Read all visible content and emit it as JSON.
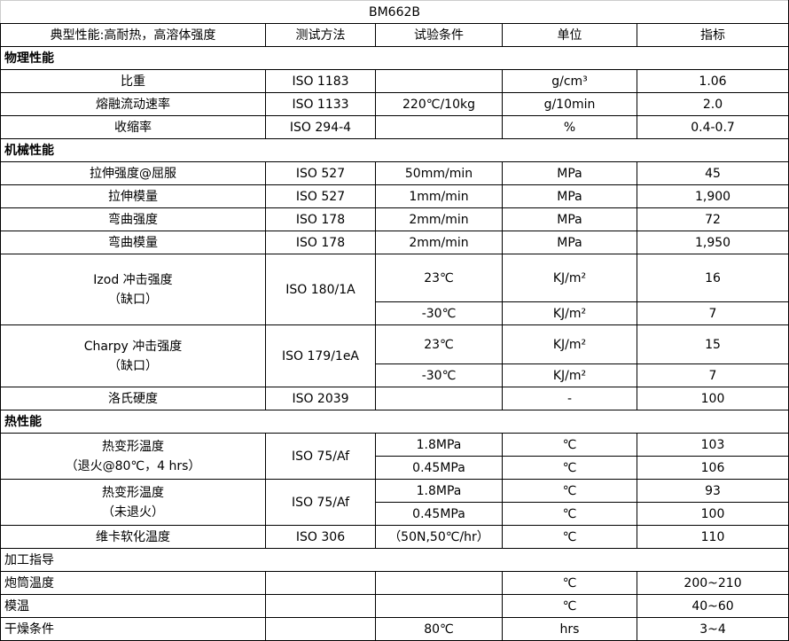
{
  "title": "BM662B",
  "headers": [
    "典型性能:高耐热，高溶体强度",
    "测试方法",
    "试验条件",
    "单位",
    "指标"
  ],
  "sections": [
    {
      "label": "物理性能",
      "bold": true,
      "rows": [
        {
          "name": [
            "比重"
          ],
          "method": "ISO 1183",
          "subs": [
            {
              "cond": "",
              "unit": "g/cm³",
              "value": "1.06"
            }
          ]
        },
        {
          "name": [
            "熔融流动速率"
          ],
          "method": "ISO 1133",
          "subs": [
            {
              "cond": "220℃/10kg",
              "unit": "g/10min",
              "value": "2.0"
            }
          ]
        },
        {
          "name": [
            "收缩率"
          ],
          "method": "ISO 294-4",
          "subs": [
            {
              "cond": "",
              "unit": "%",
              "value": "0.4-0.7"
            }
          ]
        }
      ]
    },
    {
      "label": "机械性能",
      "bold": true,
      "rows": [
        {
          "name": [
            "拉伸强度@屈服"
          ],
          "method": "ISO 527",
          "subs": [
            {
              "cond": "50mm/min",
              "unit": "MPa",
              "value": "45"
            }
          ]
        },
        {
          "name": [
            "拉伸模量"
          ],
          "method": "ISO 527",
          "subs": [
            {
              "cond": "1mm/min",
              "unit": "MPa",
              "value": "1,900"
            }
          ]
        },
        {
          "name": [
            "弯曲强度"
          ],
          "method": "ISO 178",
          "subs": [
            {
              "cond": "2mm/min",
              "unit": "MPa",
              "value": "72"
            }
          ]
        },
        {
          "name": [
            "弯曲模量"
          ],
          "method": "ISO 178",
          "subs": [
            {
              "cond": "2mm/min",
              "unit": "MPa",
              "value": "1,950"
            }
          ]
        },
        {
          "name": [
            "Izod 冲击强度",
            "（缺口）"
          ],
          "method": "ISO 180/1A",
          "subs": [
            {
              "cond": "23℃",
              "unit": "KJ/m²",
              "value": "16"
            },
            {
              "cond": "-30℃",
              "unit": "KJ/m²",
              "value": "7"
            }
          ]
        },
        {
          "name": [
            "Charpy 冲击强度",
            "（缺口）"
          ],
          "method": "ISO 179/1eA",
          "subs": [
            {
              "cond": "23℃",
              "unit": "KJ/m²",
              "value": "15"
            },
            {
              "cond": "-30℃",
              "unit": "KJ/m²",
              "value": "7"
            }
          ]
        },
        {
          "name": [
            "洛氏硬度"
          ],
          "method": "ISO 2039",
          "subs": [
            {
              "cond": "",
              "unit": "-",
              "value": "100"
            }
          ]
        }
      ]
    },
    {
      "label": "热性能",
      "bold": true,
      "rows": [
        {
          "name": [
            "热变形温度",
            "（退火@80℃，4 hrs）"
          ],
          "method": "ISO 75/Af",
          "subs": [
            {
              "cond": "1.8MPa",
              "unit": "℃",
              "value": "103"
            },
            {
              "cond": "0.45MPa",
              "unit": "℃",
              "value": "106"
            }
          ]
        },
        {
          "name": [
            "热变形温度",
            "（未退火）"
          ],
          "method": "ISO 75/Af",
          "subs": [
            {
              "cond": "1.8MPa",
              "unit": "℃",
              "value": "93"
            },
            {
              "cond": "0.45MPa",
              "unit": "℃",
              "value": "100"
            }
          ]
        },
        {
          "name": [
            "维卡软化温度"
          ],
          "method": "ISO 306",
          "subs": [
            {
              "cond": "（50N,50℃/hr）",
              "unit": "℃",
              "value": "110"
            }
          ]
        }
      ]
    },
    {
      "label": "加工指导",
      "bold": false,
      "left": true,
      "rows": [
        {
          "name": [
            "炮筒温度"
          ],
          "method": "",
          "subs": [
            {
              "cond": "",
              "unit": "℃",
              "value": "200~210"
            }
          ]
        },
        {
          "name": [
            "模温"
          ],
          "method": "",
          "subs": [
            {
              "cond": "",
              "unit": "℃",
              "value": "40~60"
            }
          ]
        },
        {
          "name": [
            "干燥条件"
          ],
          "method": "",
          "subs": [
            {
              "cond": "80℃",
              "unit": "hrs",
              "value": "3~4"
            }
          ]
        }
      ]
    }
  ]
}
